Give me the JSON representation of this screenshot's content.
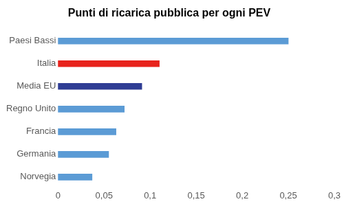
{
  "chart_data": {
    "type": "bar",
    "title": "Punti di ricarica pubblica per ogni PEV",
    "orientation": "horizontal",
    "categories": [
      "Paesi Bassi",
      "Italia",
      "Media EU",
      "Regno Unito",
      "Francia",
      "Germania",
      "Norvegia"
    ],
    "values": [
      0.25,
      0.11,
      0.091,
      0.072,
      0.063,
      0.055,
      0.037
    ],
    "colors": [
      "#5b9bd5",
      "#e8231c",
      "#2f3d94",
      "#5b9bd5",
      "#5b9bd5",
      "#5b9bd5",
      "#5b9bd5"
    ],
    "xlim": [
      0,
      0.3
    ],
    "xticks": [
      0,
      {
        "value": 0.05,
        "label": "0,05"
      },
      {
        "value": 0.1,
        "label": "0,1"
      },
      {
        "value": 0.15,
        "label": "0,15"
      },
      {
        "value": 0.2,
        "label": "0,2"
      },
      {
        "value": 0.25,
        "label": "0,25"
      },
      {
        "value": 0.3,
        "label": "0,3"
      }
    ],
    "grid": false
  }
}
